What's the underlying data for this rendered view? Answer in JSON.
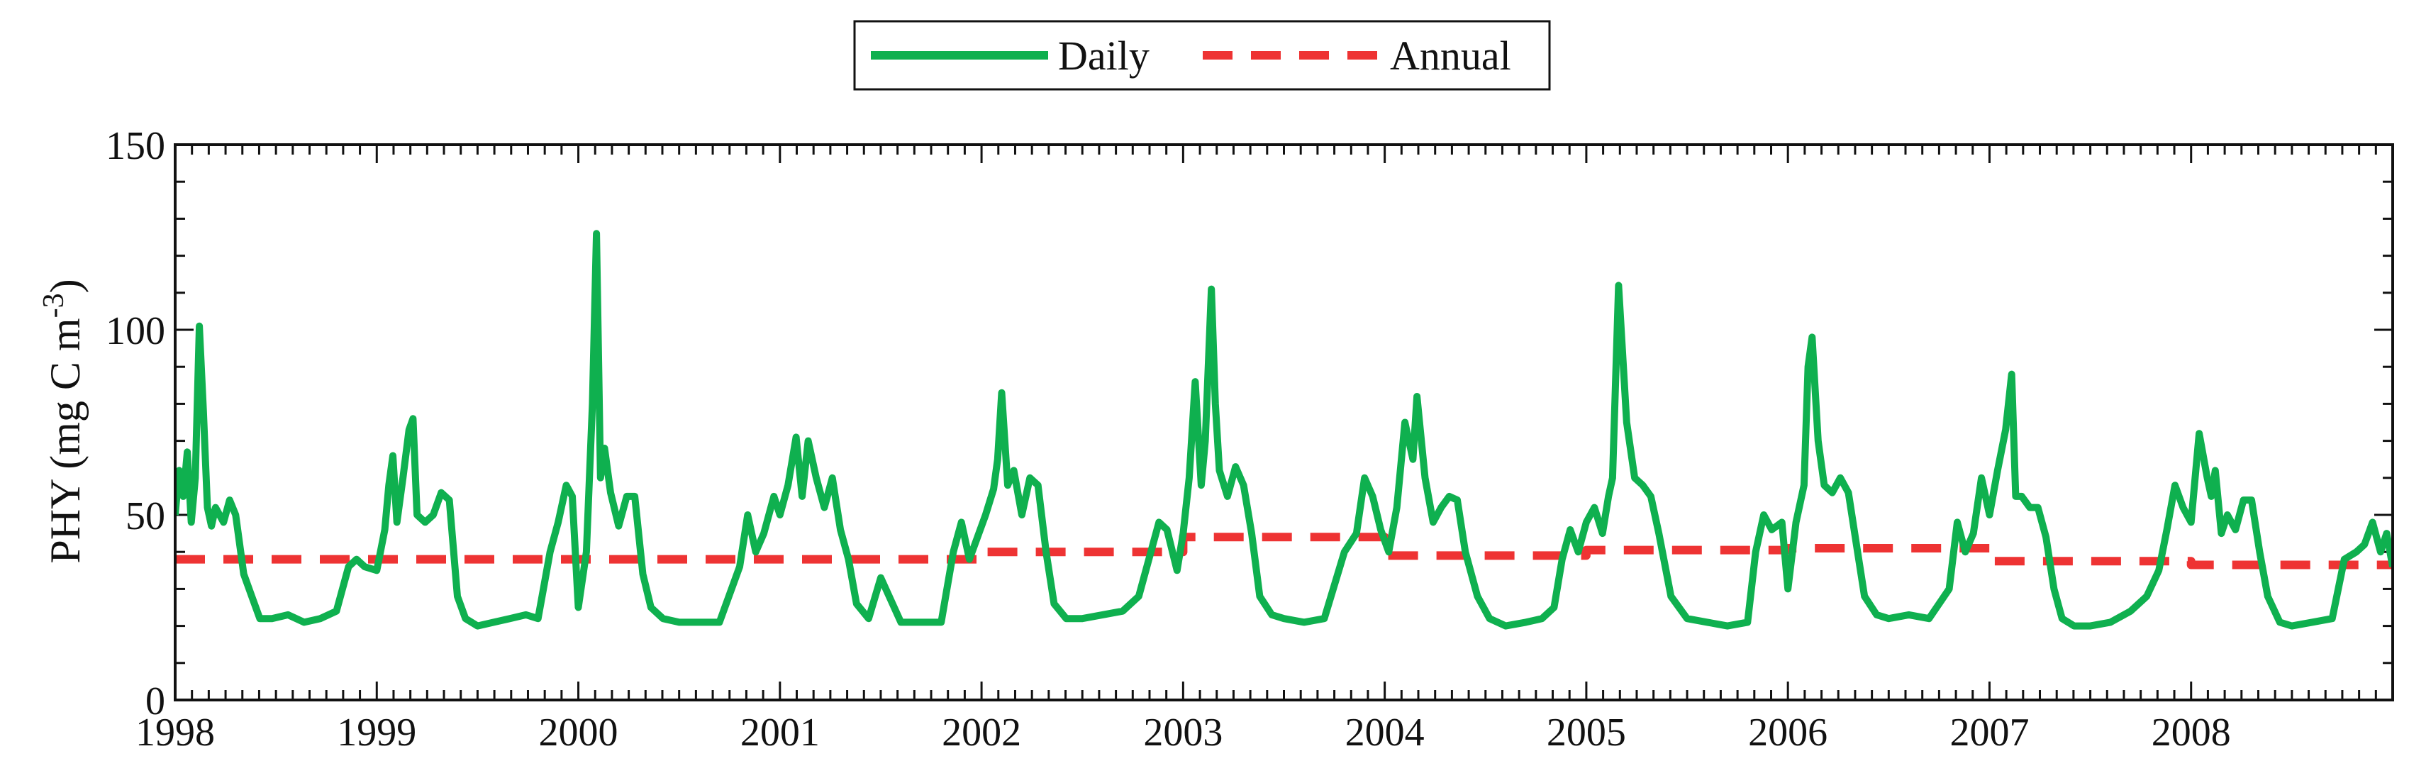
{
  "chart_data": {
    "type": "line",
    "title": "",
    "xlabel": "",
    "ylabel": "PHY (mg C m",
    "ylabel_superscript": "-3",
    "ylabel_close": ")",
    "xlim": [
      1998,
      2009
    ],
    "ylim": [
      0,
      150
    ],
    "x_ticks": [
      1998,
      1999,
      2000,
      2001,
      2002,
      2003,
      2004,
      2005,
      2006,
      2007,
      2008
    ],
    "x_tick_labels": [
      "1998",
      "1999",
      "2000",
      "2001",
      "2002",
      "2003",
      "2004",
      "2005",
      "2006",
      "2007",
      "2008"
    ],
    "y_ticks": [
      0,
      50,
      100,
      150
    ],
    "y_tick_labels": [
      "0",
      "50",
      "100",
      "150"
    ],
    "legend": {
      "position": "top-center"
    },
    "series": [
      {
        "name": "Daily",
        "color": "#0fb04f",
        "style": "solid",
        "x": [
          1998.0,
          1998.02,
          1998.04,
          1998.06,
          1998.08,
          1998.1,
          1998.12,
          1998.14,
          1998.16,
          1998.18,
          1998.2,
          1998.24,
          1998.27,
          1998.3,
          1998.34,
          1998.38,
          1998.42,
          1998.48,
          1998.56,
          1998.64,
          1998.72,
          1998.8,
          1998.86,
          1998.9,
          1998.94,
          1999.0,
          1999.04,
          1999.06,
          1999.08,
          1999.1,
          1999.13,
          1999.16,
          1999.18,
          1999.2,
          1999.24,
          1999.28,
          1999.32,
          1999.36,
          1999.4,
          1999.44,
          1999.5,
          1999.58,
          1999.66,
          1999.74,
          1999.8,
          1999.86,
          1999.9,
          1999.94,
          1999.97,
          2000.0,
          2000.04,
          2000.07,
          2000.09,
          2000.11,
          2000.13,
          2000.16,
          2000.2,
          2000.24,
          2000.28,
          2000.32,
          2000.36,
          2000.42,
          2000.5,
          2000.6,
          2000.7,
          2000.8,
          2000.84,
          2000.88,
          2000.92,
          2000.97,
          2001.0,
          2001.04,
          2001.08,
          2001.11,
          2001.14,
          2001.18,
          2001.22,
          2001.26,
          2001.3,
          2001.34,
          2001.38,
          2001.44,
          2001.5,
          2001.6,
          2001.7,
          2001.8,
          2001.86,
          2001.9,
          2001.94,
          2001.98,
          2002.02,
          2002.06,
          2002.08,
          2002.1,
          2002.13,
          2002.16,
          2002.2,
          2002.24,
          2002.28,
          2002.32,
          2002.36,
          2002.42,
          2002.5,
          2002.6,
          2002.7,
          2002.78,
          2002.84,
          2002.88,
          2002.92,
          2002.97,
          2003.0,
          2003.03,
          2003.06,
          2003.09,
          2003.11,
          2003.14,
          2003.16,
          2003.18,
          2003.22,
          2003.26,
          2003.3,
          2003.34,
          2003.38,
          2003.44,
          2003.5,
          2003.6,
          2003.7,
          2003.8,
          2003.86,
          2003.9,
          2003.94,
          2003.98,
          2004.02,
          2004.06,
          2004.1,
          2004.14,
          2004.16,
          2004.2,
          2004.24,
          2004.28,
          2004.32,
          2004.36,
          2004.4,
          2004.46,
          2004.52,
          2004.6,
          2004.7,
          2004.78,
          2004.84,
          2004.88,
          2004.92,
          2004.96,
          2005.0,
          2005.04,
          2005.08,
          2005.11,
          2005.13,
          2005.16,
          2005.2,
          2005.24,
          2005.28,
          2005.32,
          2005.36,
          2005.42,
          2005.5,
          2005.6,
          2005.7,
          2005.8,
          2005.84,
          2005.88,
          2005.92,
          2005.97,
          2006.0,
          2006.04,
          2006.08,
          2006.1,
          2006.12,
          2006.15,
          2006.18,
          2006.22,
          2006.26,
          2006.3,
          2006.34,
          2006.38,
          2006.44,
          2006.5,
          2006.6,
          2006.7,
          2006.8,
          2006.84,
          2006.88,
          2006.92,
          2006.96,
          2007.0,
          2007.04,
          2007.08,
          2007.11,
          2007.13,
          2007.16,
          2007.2,
          2007.24,
          2007.28,
          2007.32,
          2007.36,
          2007.42,
          2007.5,
          2007.6,
          2007.7,
          2007.78,
          2007.84,
          2007.88,
          2007.92,
          2007.96,
          2008.0,
          2008.04,
          2008.08,
          2008.1,
          2008.12,
          2008.15,
          2008.18,
          2008.22,
          2008.26,
          2008.3,
          2008.34,
          2008.38,
          2008.44,
          2008.5,
          2008.6,
          2008.7,
          2008.76,
          2008.82,
          2008.86,
          2008.9,
          2008.94,
          2008.97,
          2009.0
        ],
        "values": [
          50,
          62,
          55,
          67,
          48,
          60,
          101,
          78,
          52,
          47,
          52,
          48,
          54,
          50,
          34,
          28,
          22,
          22,
          23,
          21,
          22,
          24,
          36,
          38,
          36,
          35,
          46,
          58,
          66,
          48,
          60,
          73,
          76,
          50,
          48,
          50,
          56,
          54,
          28,
          22,
          20,
          21,
          22,
          23,
          22,
          40,
          48,
          58,
          55,
          25,
          40,
          80,
          126,
          60,
          68,
          56,
          47,
          55,
          55,
          34,
          25,
          22,
          21,
          21,
          21,
          36,
          50,
          40,
          45,
          55,
          50,
          58,
          71,
          55,
          70,
          60,
          52,
          60,
          46,
          38,
          26,
          22,
          33,
          21,
          21,
          21,
          40,
          48,
          38,
          44,
          50,
          57,
          65,
          83,
          58,
          62,
          50,
          60,
          58,
          40,
          26,
          22,
          22,
          23,
          24,
          28,
          40,
          48,
          46,
          35,
          45,
          60,
          86,
          58,
          70,
          111,
          80,
          62,
          55,
          63,
          58,
          45,
          28,
          23,
          22,
          21,
          22,
          40,
          45,
          60,
          55,
          46,
          40,
          52,
          75,
          65,
          82,
          60,
          48,
          52,
          55,
          54,
          40,
          28,
          22,
          20,
          21,
          22,
          25,
          38,
          46,
          40,
          48,
          52,
          45,
          55,
          60,
          112,
          75,
          60,
          58,
          55,
          45,
          28,
          22,
          21,
          20,
          21,
          40,
          50,
          46,
          48,
          30,
          48,
          58,
          90,
          98,
          70,
          58,
          56,
          60,
          56,
          42,
          28,
          23,
          22,
          23,
          22,
          30,
          48,
          40,
          45,
          60,
          50,
          62,
          73,
          88,
          55,
          55,
          52,
          52,
          44,
          30,
          22,
          20,
          20,
          21,
          24,
          28,
          35,
          46,
          58,
          52,
          48,
          72,
          60,
          55,
          62,
          45,
          50,
          46,
          54,
          54,
          40,
          28,
          21,
          20,
          21,
          22,
          38,
          40,
          42,
          48,
          40,
          45,
          36
        ]
      },
      {
        "name": "Annual",
        "color": "#ee3333",
        "style": "dashed",
        "x": [
          1998,
          1999,
          1999,
          2000,
          2000,
          2001,
          2001,
          2002,
          2002,
          2003,
          2003,
          2004,
          2004,
          2005,
          2005,
          2006,
          2006,
          2007,
          2007,
          2008,
          2008,
          2009
        ],
        "values": [
          38,
          38,
          38,
          38,
          38,
          38,
          38,
          38,
          40,
          40,
          44,
          44,
          39,
          39,
          40.5,
          40.5,
          41,
          41,
          37.5,
          37.5,
          36.5,
          36.5
        ]
      }
    ]
  }
}
